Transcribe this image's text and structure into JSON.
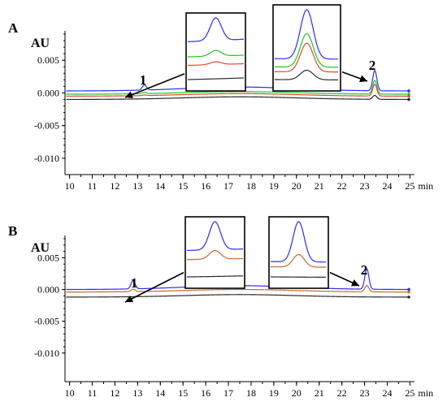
{
  "chart_data": [
    {
      "type": "line",
      "panel_label": "A",
      "ylabel": "AU",
      "xlabel": "min",
      "x_ticks": [
        10,
        11,
        12,
        13,
        14,
        15,
        16,
        17,
        18,
        19,
        20,
        21,
        22,
        23,
        24,
        25
      ],
      "y_ticks": [
        "0.005",
        "0.000",
        "-0.005",
        "-0.010"
      ],
      "y_tick_values": [
        0.005,
        0.0,
        -0.005,
        -0.01
      ],
      "xlim": [
        9.8,
        25.2
      ],
      "ylim": [
        -0.0125,
        0.0095
      ],
      "grid": false,
      "peaks": [
        {
          "label": "1",
          "retention_time": 13.3
        },
        {
          "label": "2",
          "retention_time": 23.45
        }
      ],
      "series": [
        {
          "color": "#2b2bff",
          "baseline": 0.0003,
          "drift": 0.0006,
          "peaks": [
            {
              "x": 13.3,
              "h": 0.0008,
              "w": 0.09
            },
            {
              "x": 23.45,
              "h": 0.0031,
              "w": 0.09
            }
          ]
        },
        {
          "color": "#21c521",
          "baseline": -0.0002,
          "drift": 0.0004,
          "peaks": [
            {
              "x": 13.3,
              "h": 0.0002,
              "w": 0.09
            },
            {
              "x": 23.45,
              "h": 0.0021,
              "w": 0.09
            }
          ]
        },
        {
          "color": "#e04a2a",
          "baseline": -0.0005,
          "drift": 0.0004,
          "peaks": [
            {
              "x": 13.3,
              "h": 0.0001,
              "w": 0.09
            },
            {
              "x": 23.45,
              "h": 0.0018,
              "w": 0.09
            }
          ]
        },
        {
          "color": "#2a2a2a",
          "baseline": -0.001,
          "drift": 0.0004,
          "peaks": [
            {
              "x": 23.45,
              "h": 0.0006,
              "w": 0.09
            }
          ]
        }
      ],
      "insets": [
        {
          "peak": "1"
        },
        {
          "peak": "2"
        }
      ]
    },
    {
      "type": "line",
      "panel_label": "B",
      "ylabel": "AU",
      "xlabel": "min",
      "x_ticks": [
        10,
        11,
        12,
        13,
        14,
        15,
        16,
        17,
        18,
        19,
        20,
        21,
        22,
        23,
        24,
        25
      ],
      "y_ticks": [
        "0.005",
        "0.000",
        "-0.005",
        "-0.010"
      ],
      "y_tick_values": [
        0.005,
        0.0,
        -0.005,
        -0.01
      ],
      "xlim": [
        9.8,
        25.2
      ],
      "ylim": [
        -0.0145,
        0.0085
      ],
      "grid": false,
      "peaks": [
        {
          "label": "1",
          "retention_time": 12.8
        },
        {
          "label": "2",
          "retention_time": 23.1
        }
      ],
      "series": [
        {
          "color": "#2b2bff",
          "baseline": 0.0,
          "drift": 0.0006,
          "peaks": [
            {
              "x": 12.8,
              "h": 0.0013,
              "w": 0.09
            },
            {
              "x": 23.1,
              "h": 0.0032,
              "w": 0.09
            }
          ]
        },
        {
          "color": "#c86a2a",
          "baseline": -0.0004,
          "drift": 0.0004,
          "peaks": [
            {
              "x": 12.8,
              "h": 0.0004,
              "w": 0.09
            },
            {
              "x": 23.1,
              "h": 0.001,
              "w": 0.09
            }
          ]
        },
        {
          "color": "#2a2a2a",
          "baseline": -0.0012,
          "drift": 0.0004,
          "peaks": []
        }
      ],
      "insets": [
        {
          "peak": "1"
        },
        {
          "peak": "2"
        }
      ]
    }
  ]
}
